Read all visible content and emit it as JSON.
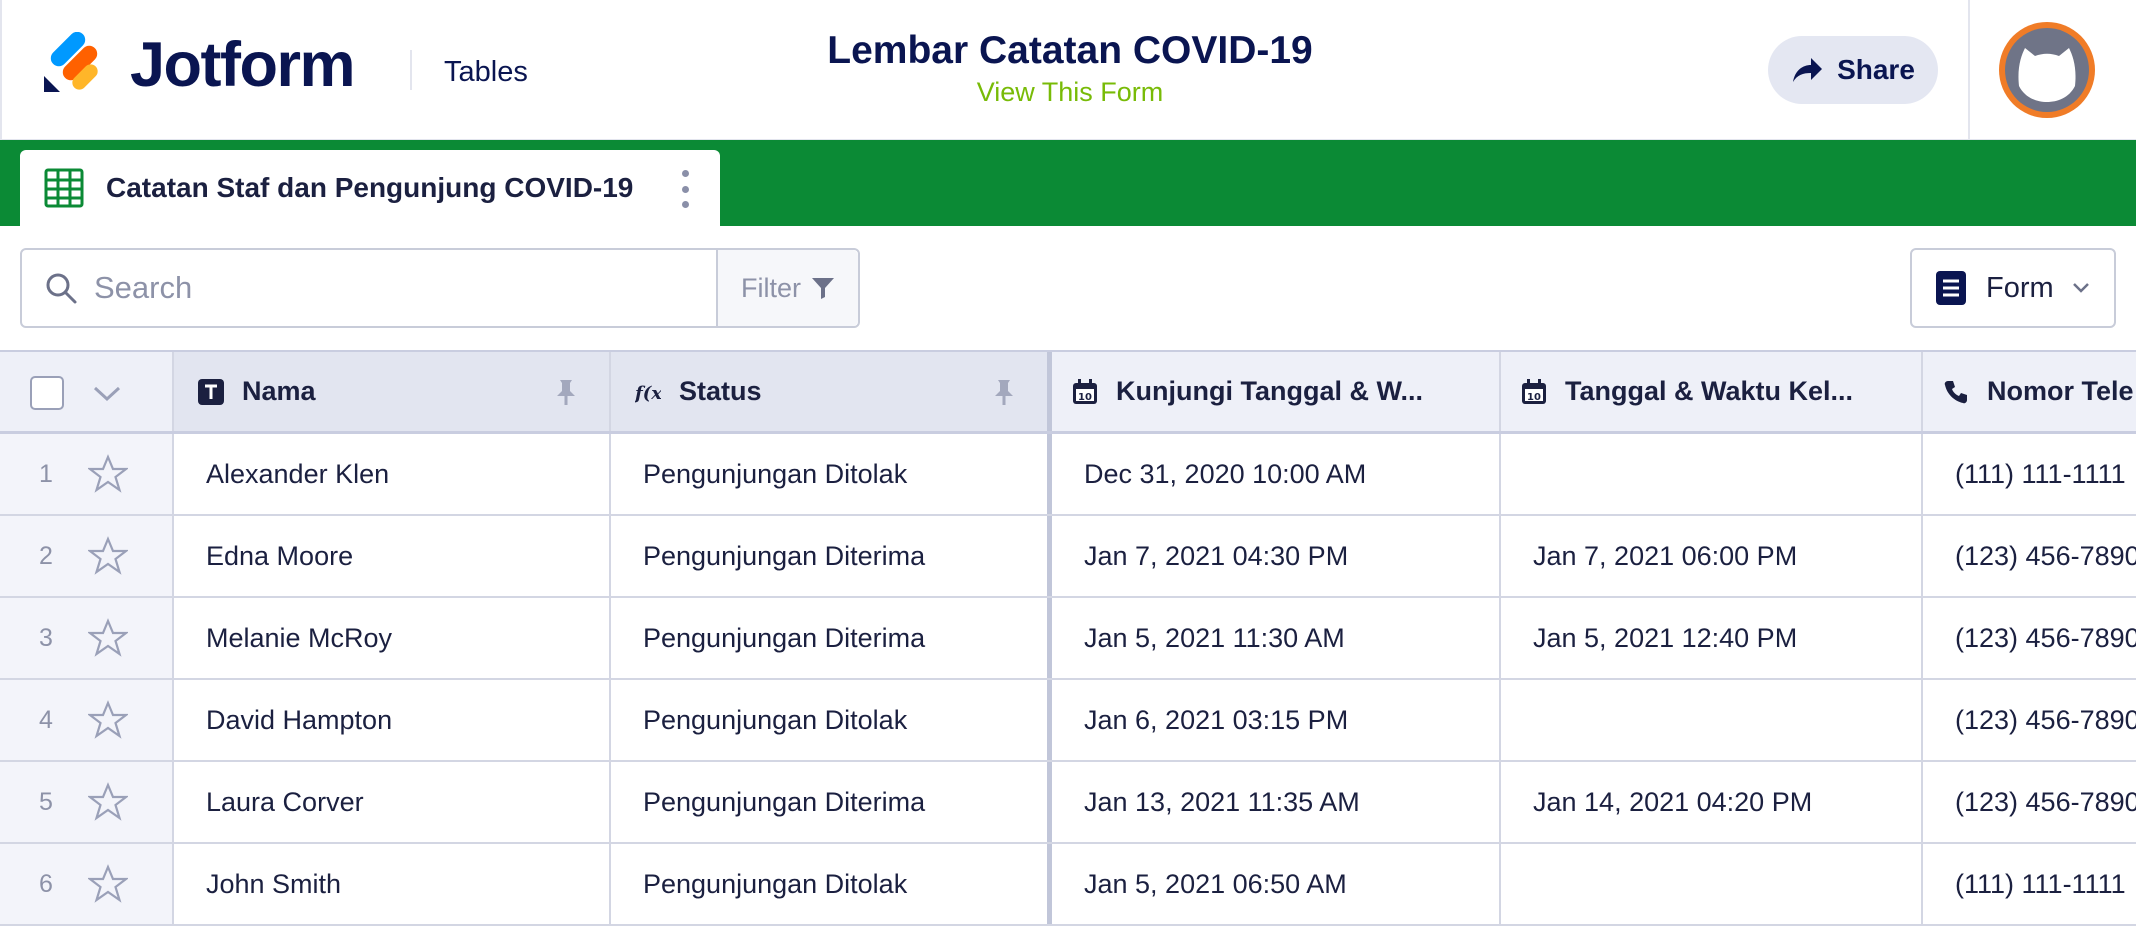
{
  "header": {
    "brand": "Jotform",
    "section": "Tables",
    "form_title": "Lembar Catatan COVID-19",
    "view_form": "View This Form",
    "share": "Share"
  },
  "tab": {
    "label": "Catatan Staf dan Pengunjung COVID-19"
  },
  "toolbar": {
    "search_placeholder": "Search",
    "filter": "Filter",
    "form": "Form"
  },
  "table": {
    "columns": [
      {
        "label": "Nama",
        "icon": "text-type-icon"
      },
      {
        "label": "Status",
        "icon": "formula-icon"
      },
      {
        "label": "Kunjungi Tanggal & W...",
        "icon": "calendar-icon"
      },
      {
        "label": "Tanggal & Waktu Kel...",
        "icon": "calendar-icon"
      },
      {
        "label": "Nomor Tele",
        "icon": "phone-icon"
      }
    ],
    "rows": [
      {
        "num": "1",
        "nama": "Alexander Klen",
        "status": "Pengunjungan Ditolak",
        "kunjungi": "Dec 31, 2020 10:00 AM",
        "keluar": "",
        "telepon": "(111) 111-1111"
      },
      {
        "num": "2",
        "nama": "Edna Moore",
        "status": "Pengunjungan Diterima",
        "kunjungi": "Jan 7, 2021 04:30 PM",
        "keluar": "Jan 7, 2021 06:00 PM",
        "telepon": "(123) 456-7890"
      },
      {
        "num": "3",
        "nama": "Melanie McRoy",
        "status": "Pengunjungan Diterima",
        "kunjungi": "Jan 5, 2021 11:30 AM",
        "keluar": "Jan 5, 2021 12:40 PM",
        "telepon": "(123) 456-7890"
      },
      {
        "num": "4",
        "nama": "David Hampton",
        "status": "Pengunjungan Ditolak",
        "kunjungi": "Jan 6, 2021 03:15 PM",
        "keluar": "",
        "telepon": "(123) 456-7890"
      },
      {
        "num": "5",
        "nama": "Laura Corver",
        "status": "Pengunjungan Diterima",
        "kunjungi": "Jan 13, 2021 11:35 AM",
        "keluar": "Jan 14, 2021 04:20 PM",
        "telepon": "(123) 456-7890"
      },
      {
        "num": "6",
        "nama": "John Smith",
        "status": "Pengunjungan Ditolak",
        "kunjungi": "Jan 5, 2021 06:50 AM",
        "keluar": "",
        "telepon": "(111) 111-1111"
      }
    ]
  },
  "colors": {
    "brand_navy": "#0a1551",
    "tab_bar_green": "#0b8a35",
    "view_form_green": "#78bb07",
    "avatar_orange": "#f07c27"
  }
}
